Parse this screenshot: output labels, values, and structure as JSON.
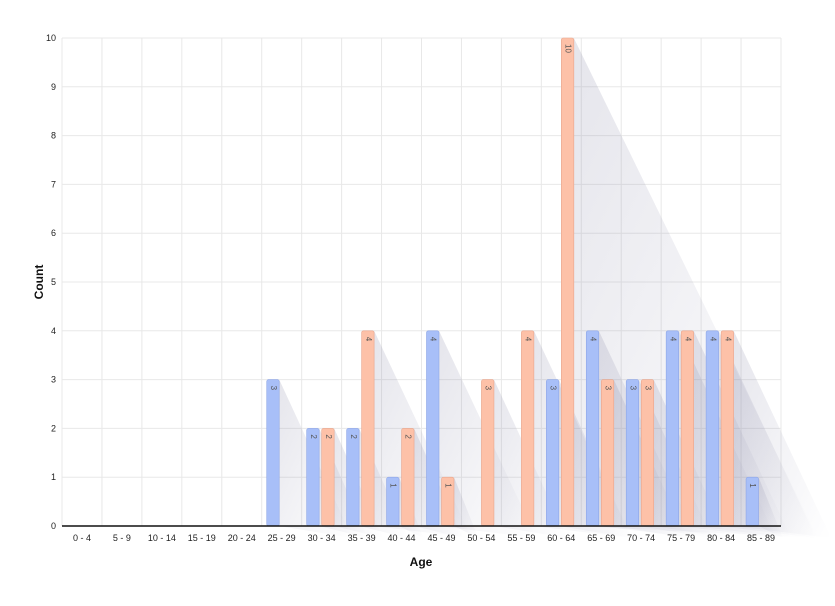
{
  "chart_data": {
    "type": "bar",
    "xlabel": "Age",
    "ylabel": "Count",
    "ylim": [
      0,
      10
    ],
    "yticks": [
      "0",
      "1",
      "2",
      "3",
      "4",
      "5",
      "6",
      "7",
      "8",
      "9",
      "10"
    ],
    "grid": true,
    "categories": [
      "0 - 4",
      "5 - 9",
      "10 - 14",
      "15 - 19",
      "20 - 24",
      "25 - 29",
      "30 - 34",
      "35 - 39",
      "40 - 44",
      "45 - 49",
      "50 - 54",
      "55 - 59",
      "60 - 64",
      "65 - 69",
      "70 - 74",
      "75 - 79",
      "80 - 84",
      "85 - 89"
    ],
    "series": [
      {
        "color": "#a8bff8",
        "values": [
          0,
          0,
          0,
          0,
          0,
          3,
          2,
          2,
          1,
          4,
          0,
          0,
          3,
          4,
          3,
          4,
          4,
          1
        ]
      },
      {
        "color": "#fdc1a8",
        "values": [
          0,
          0,
          0,
          0,
          0,
          0,
          2,
          4,
          2,
          1,
          3,
          4,
          10,
          3,
          3,
          4,
          4,
          0
        ]
      }
    ],
    "data_labels": true
  }
}
